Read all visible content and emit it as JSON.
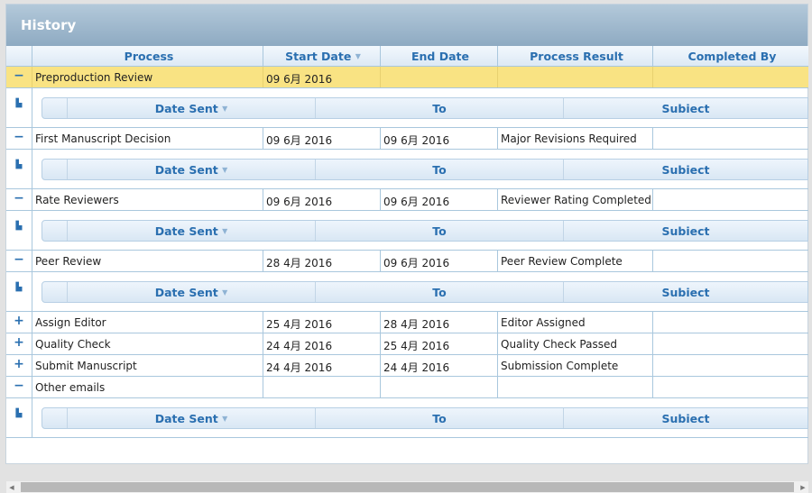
{
  "panel": {
    "title": "History"
  },
  "columns": {
    "process": "Process",
    "start_date": "Start Date",
    "end_date": "End Date",
    "result": "Process Result",
    "completed_by": "Completed By"
  },
  "sub_columns": {
    "date_sent": "Date Sent",
    "to": "To",
    "subject": "Subiect"
  },
  "icons": {
    "sort": "sort-arrow-icon",
    "expand": "plus-icon",
    "collapse": "minus-icon"
  },
  "highlight_color": "#f9e383",
  "rows": [
    {
      "toggle": "−",
      "process": "Preproduction Review",
      "start": "09 6月 2016",
      "end": "",
      "result": "",
      "completed_by": "",
      "expanded": true,
      "selected": true
    },
    {
      "toggle": "−",
      "process": "First Manuscript Decision",
      "start": "09 6月 2016",
      "end": "09 6月 2016",
      "result": "Major Revisions Required",
      "completed_by": "",
      "expanded": true
    },
    {
      "toggle": "−",
      "process": "Rate Reviewers",
      "start": "09 6月 2016",
      "end": "09 6月 2016",
      "result": "Reviewer Rating Completed",
      "completed_by": "",
      "expanded": true
    },
    {
      "toggle": "−",
      "process": "Peer Review",
      "start": "28 4月 2016",
      "end": "09 6月 2016",
      "result": "Peer Review Complete",
      "completed_by": "",
      "expanded": true
    },
    {
      "toggle": "+",
      "process": "Assign Editor",
      "start": "25 4月 2016",
      "end": "28 4月 2016",
      "result": "Editor Assigned",
      "completed_by": "",
      "expanded": false
    },
    {
      "toggle": "+",
      "process": "Quality Check",
      "start": "24 4月 2016",
      "end": "25 4月 2016",
      "result": "Quality Check Passed",
      "completed_by": "",
      "expanded": false
    },
    {
      "toggle": "+",
      "process": "Submit Manuscript",
      "start": "24 4月 2016",
      "end": "24 4月 2016",
      "result": "Submission Complete",
      "completed_by": "",
      "expanded": false
    },
    {
      "toggle": "−",
      "process": "Other emails",
      "start": "",
      "end": "",
      "result": "",
      "completed_by": "",
      "expanded": true
    }
  ]
}
